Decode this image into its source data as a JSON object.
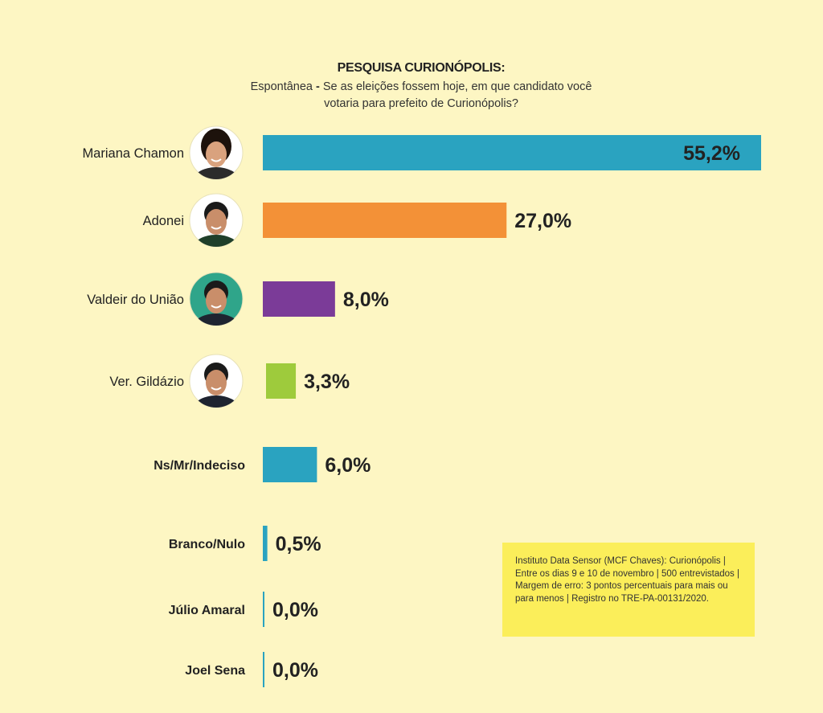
{
  "header": {
    "title": "PESQUISA CURIONÓPOLIS:",
    "subtitle_lead": "Espontânea",
    "subtitle_dash": " - ",
    "subtitle_line1": "Se as eleições fossem hoje, em que candidato você",
    "subtitle_line2": "votaria para prefeito de Curionópolis?"
  },
  "note": {
    "text": "Instituto Data Sensor (MCF Chaves): Curionópolis | Entre os dias 9 e 10 de novembro | 500 entrevistados | Margem de erro: 3 pontos percentuais para mais ou para menos | Registro no TRE-PA-00131/2020."
  },
  "chart_data": {
    "type": "bar",
    "orientation": "horizontal",
    "categories": [
      "Mariana Chamon",
      "Adonei",
      "Valdeir do União",
      "Ver. Gildázio",
      "Ns/Mr/Indeciso",
      "Branco/Nulo",
      "Júlio Amaral",
      "Joel Sena"
    ],
    "values": [
      55.2,
      27.0,
      8.0,
      3.3,
      6.0,
      0.5,
      0.0,
      0.0
    ],
    "value_labels": [
      "55,2%",
      "27,0%",
      "8,0%",
      "3,3%",
      "6,0%",
      "0,5%",
      "0,0%",
      "0,0%"
    ],
    "colors": [
      "#2aa3c0",
      "#f39137",
      "#7b3b98",
      "#9ecb3c",
      "#2aa3c0",
      "#2aa3c0",
      "#2aa3c0",
      "#2aa3c0"
    ],
    "photos": [
      true,
      true,
      true,
      true,
      false,
      false,
      false,
      false
    ],
    "bold_labels": [
      false,
      false,
      false,
      false,
      true,
      true,
      true,
      true
    ],
    "legend": "none",
    "grid": false
  }
}
